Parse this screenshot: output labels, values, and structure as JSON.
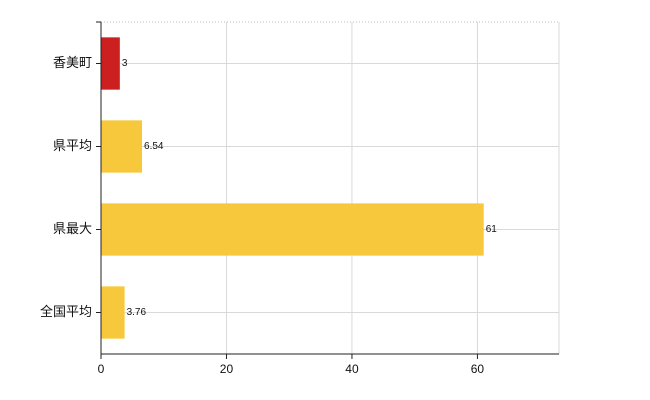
{
  "chart_data": {
    "type": "bar",
    "orientation": "horizontal",
    "categories": [
      "香美町",
      "県平均",
      "県最大",
      "全国平均"
    ],
    "values": [
      3,
      6.54,
      61,
      3.76
    ],
    "value_labels": [
      "3",
      "6.54",
      "61",
      "3.76"
    ],
    "bar_colors": [
      "#cc1f1f",
      "#f8c83c",
      "#f8c83c",
      "#f8c83c"
    ],
    "xlim": [
      0,
      73
    ],
    "xticks": [
      0,
      20,
      40,
      60
    ],
    "xtick_labels": [
      "0",
      "20",
      "40",
      "60"
    ],
    "grid": true,
    "title": "",
    "xlabel": "",
    "ylabel": ""
  }
}
